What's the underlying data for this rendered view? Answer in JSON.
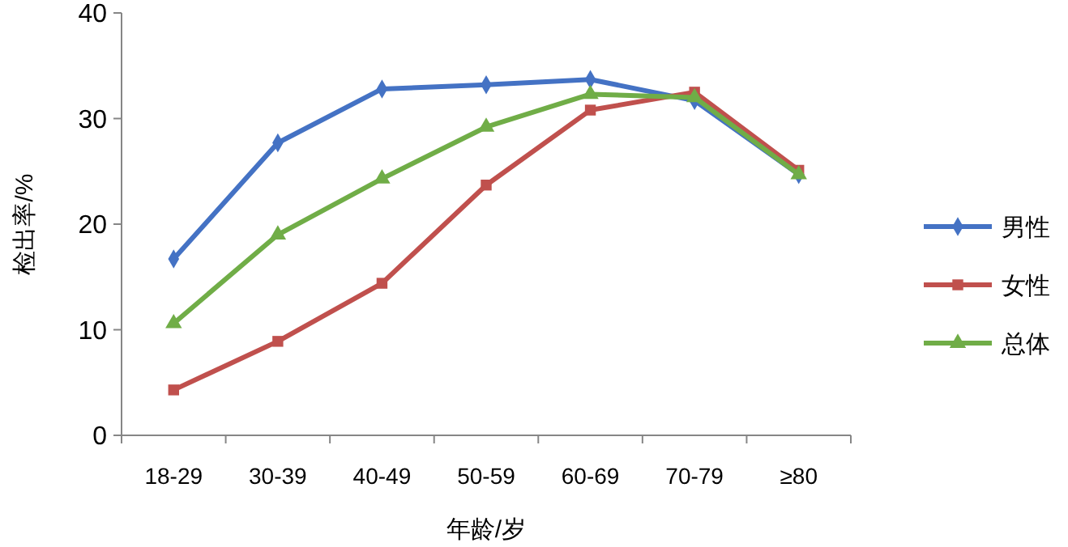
{
  "chart_data": {
    "type": "line",
    "xlabel": "年龄/岁",
    "ylabel": "检出率/%",
    "categories": [
      "18-29",
      "30-39",
      "40-49",
      "50-59",
      "60-69",
      "70-79",
      "≥80"
    ],
    "series": [
      {
        "name": "男性",
        "color": "#4472c4",
        "marker": "diamond",
        "values": [
          16.7,
          27.7,
          32.8,
          33.2,
          33.7,
          31.7,
          24.7
        ]
      },
      {
        "name": "女性",
        "color": "#c0504d",
        "marker": "square",
        "values": [
          4.3,
          8.9,
          14.4,
          23.7,
          30.8,
          32.5,
          25.1
        ]
      },
      {
        "name": "总体",
        "color": "#70ad47",
        "marker": "triangle",
        "values": [
          10.6,
          19.0,
          24.3,
          29.2,
          32.3,
          32.0,
          24.7
        ]
      }
    ],
    "ylim": [
      0,
      40
    ],
    "yticks": [
      0,
      10,
      20,
      30,
      40
    ],
    "grid": false,
    "legend": "right"
  }
}
